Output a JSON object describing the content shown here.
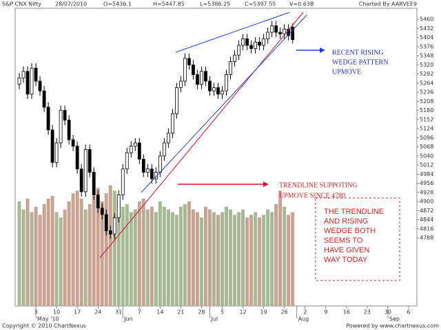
{
  "chart_data": {
    "type": "candlestick",
    "title": "S&P CNX Nifty",
    "date": "28/07/2010",
    "quote": [
      "O=5436.1",
      "H=5447.85",
      "L=5386.25",
      "C=5397.55",
      "V=0.63B"
    ],
    "credit": "Charted By AARVEE9",
    "footer_left": "Copyright © 2010 ChartNexus",
    "footer_right": "Powered by www.chartnexus.com",
    "annotations": {
      "wedge": [
        "RECENT RISING",
        "WEDGE PATTERN",
        "UPMOVE"
      ],
      "trendline": [
        "TRENDLINE SUPPOTING",
        "UPMOVE SINCE 4780"
      ],
      "box": [
        "THE TRENDLINE",
        "AND RISING",
        "WEDGE BOTH",
        "SEEMS TO",
        "HAVE GIVEN",
        "WAY TODAY"
      ]
    },
    "up_color": "#ffffff",
    "down_color": "#000000",
    "volume_up_color": "#a6b894",
    "volume_down_color": "#c9a392",
    "xlim": [
      -1,
      96
    ],
    "ylim": [
      4579,
      5494
    ],
    "vlim": [
      0,
      100
    ],
    "xticks": [
      {
        "value": 4,
        "label": "3"
      },
      {
        "value": 9,
        "label": "10"
      },
      {
        "value": 14,
        "label": "17"
      },
      {
        "value": 19,
        "label": "24"
      },
      {
        "value": 24,
        "label": "31"
      },
      {
        "value": 29,
        "label": "7"
      },
      {
        "value": 34,
        "label": "14"
      },
      {
        "value": 39,
        "label": "21"
      },
      {
        "value": 44,
        "label": "28"
      },
      {
        "value": 49,
        "label": "5"
      },
      {
        "value": 54,
        "label": "12"
      },
      {
        "value": 59,
        "label": "19"
      },
      {
        "value": 64,
        "label": "26"
      },
      {
        "value": 69,
        "label": "2"
      },
      {
        "value": 74,
        "label": "9"
      },
      {
        "value": 79,
        "label": "16"
      },
      {
        "value": 84,
        "label": "23"
      },
      {
        "value": 89,
        "label": "30"
      },
      {
        "value": 94,
        "label": "6"
      }
    ],
    "month_labels": [
      {
        "value": 4,
        "label": "May '10"
      },
      {
        "value": 25,
        "label": "Jun"
      },
      {
        "value": 46,
        "label": "Jul"
      },
      {
        "value": 67,
        "label": "Aug"
      },
      {
        "value": 89,
        "label": "Sep"
      }
    ],
    "yticks": [
      4788,
      4816,
      4844,
      4872,
      4900,
      4928,
      4956,
      4984,
      5012,
      5040,
      5068,
      5096,
      5124,
      5152,
      5180,
      5208,
      5236,
      5264,
      5292,
      5320,
      5348,
      5376,
      5404,
      5432,
      5460
    ],
    "x": [
      0,
      1,
      2,
      3,
      4,
      5,
      6,
      7,
      8,
      9,
      10,
      11,
      12,
      13,
      14,
      15,
      16,
      17,
      18,
      19,
      20,
      21,
      22,
      23,
      24,
      25,
      26,
      27,
      28,
      29,
      30,
      31,
      32,
      33,
      34,
      35,
      36,
      37,
      38,
      39,
      40,
      41,
      42,
      43,
      44,
      45,
      46,
      47,
      48,
      49,
      50,
      51,
      52,
      53,
      54,
      55,
      56,
      57,
      58,
      59,
      60,
      61,
      62,
      63,
      64,
      65,
      66
    ],
    "open": [
      5260,
      5280,
      5300,
      5230,
      5310,
      5270,
      5240,
      5190,
      5120,
      5020,
      5080,
      5180,
      5150,
      5090,
      5070,
      5000,
      4930,
      5060,
      4990,
      4920,
      4880,
      4860,
      4810,
      4800,
      4850,
      4920,
      5000,
      5050,
      5070,
      5080,
      5030,
      4990,
      5000,
      4970,
      4990,
      5040,
      5080,
      5110,
      5170,
      5250,
      5270,
      5340,
      5320,
      5290,
      5260,
      5300,
      5270,
      5240,
      5250,
      5230,
      5240,
      5290,
      5330,
      5350,
      5380,
      5400,
      5380,
      5370,
      5390,
      5380,
      5400,
      5420,
      5440,
      5420,
      5415,
      5430,
      5436.1
    ],
    "high": [
      5295,
      5315,
      5315,
      5325,
      5325,
      5285,
      5255,
      5205,
      5135,
      5095,
      5195,
      5195,
      5165,
      5105,
      5085,
      5015,
      5075,
      5075,
      5005,
      4935,
      4895,
      4875,
      4825,
      4865,
      4935,
      5015,
      5065,
      5085,
      5095,
      5095,
      5045,
      5015,
      5015,
      5005,
      5055,
      5095,
      5125,
      5185,
      5265,
      5285,
      5355,
      5355,
      5335,
      5305,
      5315,
      5315,
      5285,
      5265,
      5265,
      5255,
      5305,
      5345,
      5365,
      5395,
      5415,
      5415,
      5395,
      5405,
      5405,
      5415,
      5435,
      5455,
      5455,
      5435,
      5445,
      5445,
      5447.85
    ],
    "low": [
      5245,
      5265,
      5215,
      5215,
      5255,
      5225,
      5175,
      5105,
      5005,
      5005,
      5065,
      5135,
      5075,
      5055,
      4985,
      4915,
      4915,
      4975,
      4905,
      4865,
      4845,
      4795,
      4785,
      4785,
      4835,
      4905,
      4985,
      5035,
      5055,
      5015,
      4975,
      4975,
      4955,
      4955,
      4975,
      5025,
      5065,
      5095,
      5155,
      5235,
      5255,
      5305,
      5275,
      5245,
      5245,
      5255,
      5225,
      5225,
      5215,
      5215,
      5225,
      5275,
      5315,
      5335,
      5365,
      5365,
      5355,
      5355,
      5365,
      5365,
      5385,
      5405,
      5405,
      5400,
      5400,
      5395,
      5386.25
    ],
    "close": [
      5280,
      5300,
      5230,
      5310,
      5270,
      5240,
      5190,
      5120,
      5020,
      5080,
      5180,
      5150,
      5090,
      5070,
      5000,
      4930,
      5060,
      4990,
      4920,
      4880,
      4860,
      4810,
      4800,
      4850,
      4920,
      5000,
      5050,
      5070,
      5080,
      5030,
      4990,
      5000,
      4970,
      4990,
      5040,
      5080,
      5110,
      5170,
      5250,
      5270,
      5340,
      5320,
      5290,
      5260,
      5300,
      5270,
      5240,
      5250,
      5230,
      5240,
      5290,
      5330,
      5350,
      5380,
      5400,
      5380,
      5370,
      5390,
      5380,
      5400,
      5420,
      5440,
      5420,
      5415,
      5430,
      5410,
      5397.55
    ],
    "volume": [
      78,
      72,
      80,
      70,
      74,
      68,
      76,
      80,
      82,
      70,
      66,
      72,
      78,
      84,
      86,
      80,
      72,
      76,
      82,
      88,
      78,
      84,
      90,
      86,
      80,
      74,
      76,
      70,
      72,
      78,
      80,
      72,
      74,
      70,
      78,
      74,
      72,
      70,
      68,
      74,
      76,
      78,
      72,
      70,
      66,
      74,
      72,
      70,
      68,
      70,
      74,
      72,
      68,
      70,
      72,
      66,
      68,
      70,
      66,
      68,
      72,
      70,
      76,
      86,
      74,
      68,
      70
    ]
  }
}
